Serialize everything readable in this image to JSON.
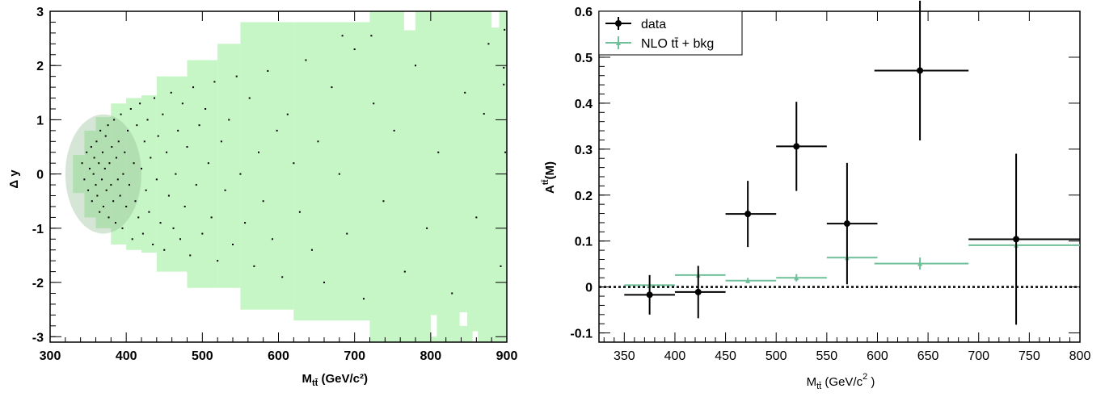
{
  "chart_data": [
    {
      "type": "scatter",
      "xlabel": "M",
      "xlabel_sub": "tt̄",
      "xlabel_unit": " (GeV/c²)",
      "ylabel": "Δ y",
      "xlim": [
        300,
        900
      ],
      "ylim": [
        -3.1,
        3.0
      ],
      "xticks": [
        "300",
        "400",
        "500",
        "600",
        "700",
        "800",
        "900"
      ],
      "yticks": [
        "-3",
        "-2",
        "-1",
        "0",
        "1",
        "2",
        "3"
      ],
      "background_color": "#c6f5c6",
      "marker_color": "#000000",
      "grid": false,
      "points": [
        [
          342,
          0.2
        ],
        [
          345,
          -0.1
        ],
        [
          348,
          0.4
        ],
        [
          350,
          -0.3
        ],
        [
          352,
          0.1
        ],
        [
          354,
          0.5
        ],
        [
          355,
          -0.5
        ],
        [
          357,
          0.0
        ],
        [
          358,
          0.3
        ],
        [
          360,
          -0.2
        ],
        [
          361,
          0.6
        ],
        [
          362,
          -0.4
        ],
        [
          364,
          0.2
        ],
        [
          365,
          -0.7
        ],
        [
          366,
          0.8
        ],
        [
          368,
          -0.1
        ],
        [
          369,
          0.4
        ],
        [
          370,
          -0.6
        ],
        [
          372,
          0.1
        ],
        [
          373,
          0.7
        ],
        [
          374,
          -0.3
        ],
        [
          376,
          0.9
        ],
        [
          377,
          -0.8
        ],
        [
          378,
          0.2
        ],
        [
          380,
          -0.2
        ],
        [
          381,
          0.5
        ],
        [
          383,
          -0.5
        ],
        [
          384,
          1.0
        ],
        [
          386,
          -0.9
        ],
        [
          387,
          0.3
        ],
        [
          389,
          -0.1
        ],
        [
          390,
          0.6
        ],
        [
          392,
          -0.4
        ],
        [
          393,
          1.1
        ],
        [
          395,
          -1.0
        ],
        [
          396,
          0.0
        ],
        [
          398,
          0.4
        ],
        [
          400,
          -0.6
        ],
        [
          402,
          0.8
        ],
        [
          404,
          -0.2
        ],
        [
          406,
          1.2
        ],
        [
          408,
          -1.2
        ],
        [
          410,
          0.2
        ],
        [
          412,
          -0.5
        ],
        [
          414,
          0.9
        ],
        [
          416,
          -0.8
        ],
        [
          418,
          1.3
        ],
        [
          420,
          0.1
        ],
        [
          422,
          -1.1
        ],
        [
          424,
          0.6
        ],
        [
          426,
          -0.3
        ],
        [
          428,
          1.0
        ],
        [
          430,
          -0.7
        ],
        [
          432,
          0.3
        ],
        [
          435,
          -1.3
        ],
        [
          437,
          1.4
        ],
        [
          440,
          -0.1
        ],
        [
          442,
          0.7
        ],
        [
          445,
          -0.9
        ],
        [
          448,
          1.1
        ],
        [
          450,
          -1.4
        ],
        [
          453,
          0.4
        ],
        [
          456,
          -0.4
        ],
        [
          459,
          1.5
        ],
        [
          462,
          -1.0
        ],
        [
          465,
          0.0
        ],
        [
          468,
          0.8
        ],
        [
          471,
          -1.2
        ],
        [
          474,
          1.3
        ],
        [
          477,
          -0.6
        ],
        [
          480,
          0.5
        ],
        [
          484,
          -1.5
        ],
        [
          488,
          1.6
        ],
        [
          492,
          -0.2
        ],
        [
          496,
          0.9
        ],
        [
          500,
          -1.1
        ],
        [
          504,
          1.2
        ],
        [
          508,
          0.2
        ],
        [
          512,
          -0.8
        ],
        [
          516,
          1.7
        ],
        [
          520,
          -1.6
        ],
        [
          525,
          0.6
        ],
        [
          530,
          -0.3
        ],
        [
          535,
          1.0
        ],
        [
          540,
          -1.3
        ],
        [
          545,
          1.8
        ],
        [
          550,
          0.0
        ],
        [
          556,
          -0.9
        ],
        [
          562,
          1.4
        ],
        [
          568,
          -1.7
        ],
        [
          574,
          0.4
        ],
        [
          580,
          -0.5
        ],
        [
          586,
          1.9
        ],
        [
          592,
          -1.2
        ],
        [
          598,
          0.8
        ],
        [
          605,
          -1.9
        ],
        [
          612,
          1.1
        ],
        [
          620,
          0.2
        ],
        [
          628,
          -0.7
        ],
        [
          636,
          2.1
        ],
        [
          644,
          -1.4
        ],
        [
          652,
          0.6
        ],
        [
          660,
          -2.0
        ],
        [
          670,
          1.6
        ],
        [
          680,
          0.0
        ],
        [
          690,
          -1.1
        ],
        [
          700,
          2.3
        ],
        [
          712,
          -2.3
        ],
        [
          725,
          1.3
        ],
        [
          738,
          -0.5
        ],
        [
          752,
          0.8
        ],
        [
          766,
          -1.8
        ],
        [
          780,
          2.0
        ],
        [
          795,
          -1.0
        ],
        [
          810,
          0.4
        ],
        [
          828,
          -2.2
        ],
        [
          845,
          1.5
        ],
        [
          860,
          -0.8
        ],
        [
          876,
          2.4
        ],
        [
          892,
          -1.7
        ],
        [
          898,
          0.4
        ],
        [
          684,
          2.55
        ],
        [
          722,
          2.55
        ],
        [
          897,
          2.66
        ],
        [
          896,
          1.96
        ],
        [
          896,
          1.65
        ],
        [
          870,
          1.11
        ]
      ]
    },
    {
      "type": "errorbar",
      "xlabel": "M",
      "xlabel_sub": "tt̄",
      "xlabel_unit": " (GeV/c",
      "xlabel_sup": "2",
      "xlabel_end": " )",
      "ylabel": "A",
      "ylabel_sup": "tt̄",
      "ylabel_end": "(M)",
      "xlim": [
        325,
        800
      ],
      "ylim": [
        -0.12,
        0.6
      ],
      "xticks": [
        "350",
        "400",
        "450",
        "500",
        "550",
        "600",
        "650",
        "700",
        "750",
        "800"
      ],
      "yticks": [
        "-0.1",
        "0",
        "0.1",
        "0.2",
        "0.3",
        "0.4",
        "0.5",
        "0.6"
      ],
      "grid": false,
      "reference_line_y": 0,
      "legend": {
        "position": "top-left",
        "entries": [
          "data",
          "NLO tt̄ + bkg"
        ]
      },
      "series": [
        {
          "name": "data",
          "color": "#000000",
          "points": [
            {
              "x": 375,
              "xlo": 350,
              "xhi": 400,
              "y": -0.017,
              "yerr": 0.043
            },
            {
              "x": 423,
              "xlo": 400,
              "xhi": 450,
              "y": -0.011,
              "yerr": 0.057
            },
            {
              "x": 472,
              "xlo": 450,
              "xhi": 500,
              "y": 0.159,
              "yerr": 0.072
            },
            {
              "x": 520,
              "xlo": 500,
              "xhi": 550,
              "y": 0.306,
              "yerr": 0.097
            },
            {
              "x": 570,
              "xlo": 550,
              "xhi": 600,
              "y": 0.138,
              "yerr": 0.132
            },
            {
              "x": 642,
              "xlo": 597,
              "xhi": 690,
              "y": 0.471,
              "yerr": 0.152
            },
            {
              "x": 737,
              "xlo": 690,
              "xhi": 800,
              "y": 0.104,
              "yerr": 0.186
            }
          ]
        },
        {
          "name": "NLO tt̄ + bkg",
          "color": "#6fbf9a",
          "points": [
            {
              "x": 375,
              "xlo": 350,
              "xhi": 400,
              "y": 0.004,
              "yerr": 0.004
            },
            {
              "x": 423,
              "xlo": 400,
              "xhi": 450,
              "y": 0.026,
              "yerr": 0.006
            },
            {
              "x": 472,
              "xlo": 450,
              "xhi": 500,
              "y": 0.014,
              "yerr": 0.006
            },
            {
              "x": 520,
              "xlo": 500,
              "xhi": 550,
              "y": 0.02,
              "yerr": 0.008
            },
            {
              "x": 570,
              "xlo": 550,
              "xhi": 600,
              "y": 0.064,
              "yerr": 0.008
            },
            {
              "x": 642,
              "xlo": 597,
              "xhi": 690,
              "y": 0.051,
              "yerr": 0.013
            },
            {
              "x": 737,
              "xlo": 690,
              "xhi": 800,
              "y": 0.091,
              "yerr": 0.009
            }
          ]
        }
      ]
    }
  ]
}
